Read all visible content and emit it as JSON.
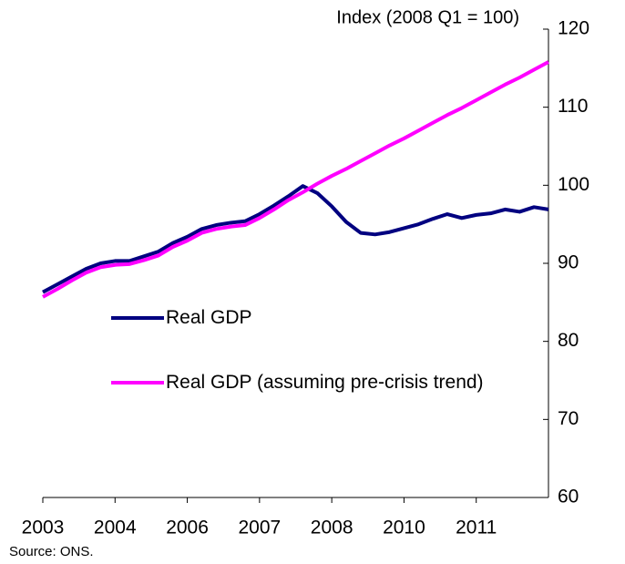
{
  "chart_data": {
    "type": "line",
    "y_axis_label": "Index (2008 Q1 = 100)",
    "source": "Source: ONS.",
    "categories": [
      "2003",
      null,
      null,
      null,
      null,
      "2004",
      null,
      null,
      null,
      null,
      "2006",
      null,
      null,
      null,
      null,
      "2007",
      null,
      null,
      null,
      null,
      "2008",
      null,
      null,
      null,
      null,
      "2010",
      null,
      null,
      null,
      null,
      "2011",
      null,
      null,
      null,
      null,
      null
    ],
    "series": [
      {
        "name": "Real GDP",
        "color": "#000080",
        "values": [
          86.3,
          87.3,
          88.3,
          89.3,
          90.0,
          90.3,
          90.3,
          90.9,
          91.5,
          92.6,
          93.4,
          94.4,
          94.9,
          95.2,
          95.4,
          96.3,
          97.4,
          98.6,
          99.9,
          99.0,
          97.3,
          95.3,
          93.9,
          93.7,
          94.0,
          94.5,
          95.0,
          95.7,
          96.3,
          95.8,
          96.2,
          96.4,
          96.9,
          96.6,
          97.2,
          96.9
        ]
      },
      {
        "name": "Real GDP (assuming pre-crisis trend)",
        "color": "#ff00ff",
        "values": [
          85.7,
          86.7,
          87.8,
          88.8,
          89.5,
          89.8,
          89.9,
          90.4,
          91.0,
          92.1,
          92.9,
          93.9,
          94.4,
          94.7,
          94.9,
          95.8,
          96.9,
          98.1,
          99.1,
          100.2,
          101.2,
          102.1,
          103.1,
          104.1,
          105.1,
          106.0,
          107.0,
          108.0,
          109.0,
          109.9,
          110.9,
          111.9,
          112.9,
          113.8,
          114.8,
          115.8
        ]
      }
    ],
    "ylim": [
      60,
      120
    ],
    "yticks": [
      60,
      70,
      80,
      90,
      100,
      110,
      120
    ],
    "y_axis_side": "right"
  }
}
